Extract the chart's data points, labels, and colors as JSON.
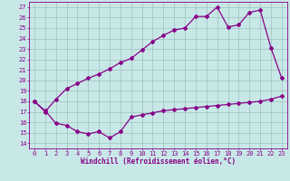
{
  "xlabel": "Windchill (Refroidissement éolien,°C)",
  "xlim": [
    -0.5,
    23.5
  ],
  "ylim": [
    13.5,
    27.5
  ],
  "yticks": [
    14,
    15,
    16,
    17,
    18,
    19,
    20,
    21,
    22,
    23,
    24,
    25,
    26,
    27
  ],
  "xticks": [
    0,
    1,
    2,
    3,
    4,
    5,
    6,
    7,
    8,
    9,
    10,
    11,
    12,
    13,
    14,
    15,
    16,
    17,
    18,
    19,
    20,
    21,
    22,
    23
  ],
  "line1_x": [
    0,
    1,
    2,
    3,
    4,
    5,
    6,
    7,
    8,
    9,
    10,
    11,
    12,
    13,
    14,
    15,
    16,
    17,
    18,
    19,
    20,
    21,
    22,
    23
  ],
  "line1_y": [
    18.0,
    17.0,
    18.2,
    19.2,
    19.7,
    20.2,
    20.6,
    21.1,
    21.7,
    22.1,
    22.9,
    23.7,
    24.3,
    24.8,
    25.0,
    26.1,
    26.1,
    27.0,
    25.1,
    25.3,
    26.5,
    26.7,
    23.1,
    20.2
  ],
  "line2_x": [
    0,
    1,
    2,
    3,
    4,
    5,
    6,
    7,
    8,
    9,
    10,
    11,
    12,
    13,
    14,
    15,
    16,
    17,
    18,
    19,
    20,
    21,
    22,
    23
  ],
  "line2_y": [
    18.0,
    17.1,
    15.9,
    15.7,
    15.1,
    14.9,
    15.1,
    14.5,
    15.1,
    16.5,
    16.7,
    16.9,
    17.1,
    17.2,
    17.3,
    17.4,
    17.5,
    17.6,
    17.7,
    17.8,
    17.9,
    18.0,
    18.2,
    18.5
  ],
  "line_color": "#880088",
  "bg_color": "#c8e8e8",
  "grid_color": "#a0c0c0",
  "marker": "D",
  "markersize": 2.0,
  "linewidth": 0.9,
  "label_fontsize": 5.5,
  "tick_fontsize": 5.0
}
